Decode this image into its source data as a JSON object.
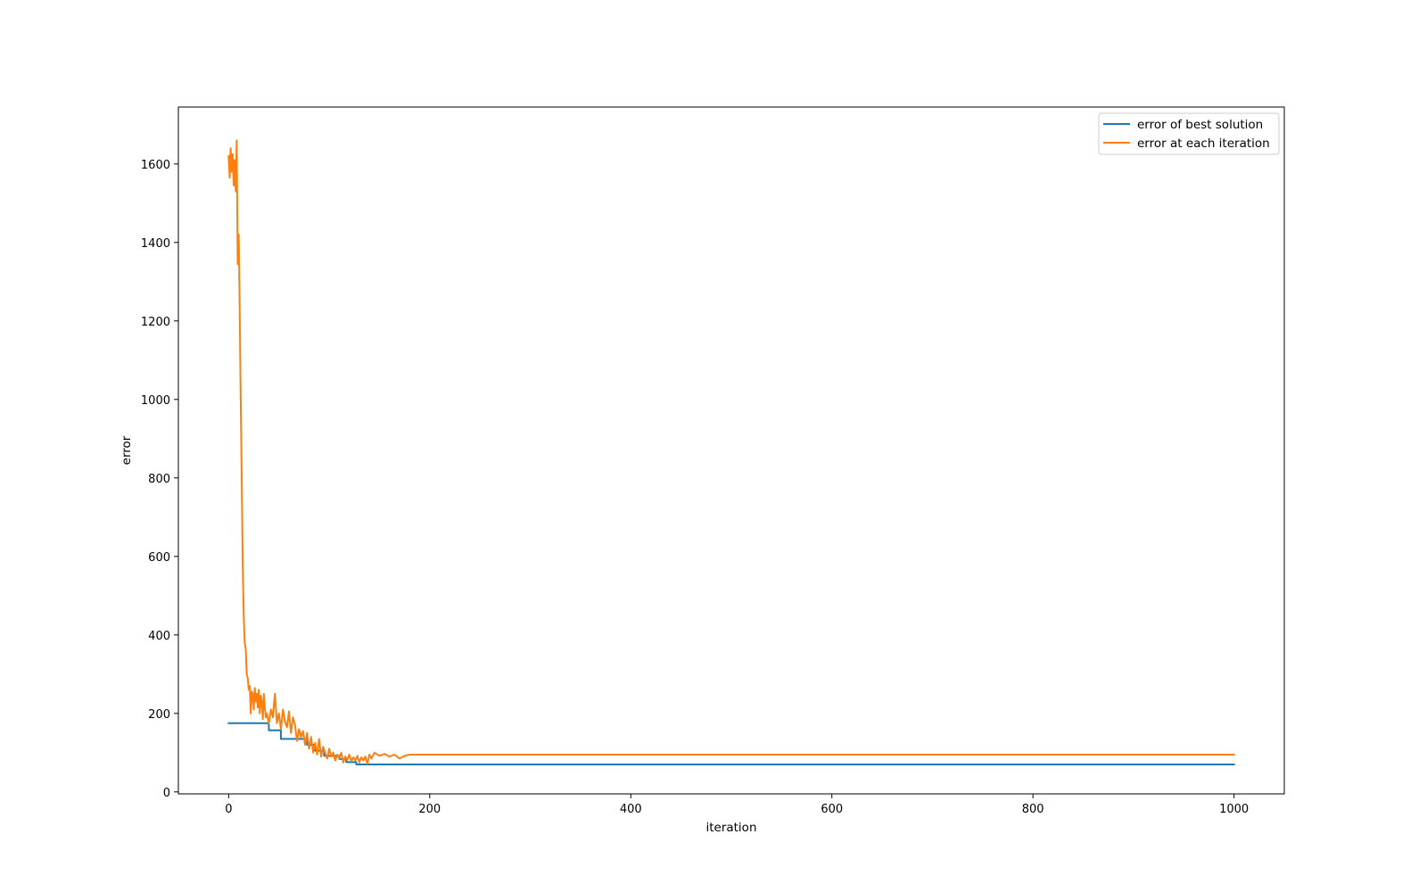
{
  "chart_data": {
    "type": "line",
    "title": "",
    "xlabel": "iteration",
    "ylabel": "error",
    "xlim": [
      -50,
      1050
    ],
    "ylim": [
      -5,
      1745
    ],
    "xticks": [
      0,
      200,
      400,
      600,
      800,
      1000
    ],
    "yticks": [
      0,
      200,
      400,
      600,
      800,
      1000,
      1200,
      1400,
      1600
    ],
    "grid": false,
    "legend_position": "top-right",
    "series": [
      {
        "name": "error of best solution",
        "color": "#1f77b4",
        "x": [
          0,
          40,
          40,
          52,
          52,
          78,
          78,
          86,
          86,
          95,
          95,
          110,
          110,
          117,
          117,
          127,
          127,
          1000
        ],
        "y": [
          175,
          175,
          157,
          157,
          135,
          135,
          120,
          120,
          105,
          105,
          92,
          92,
          84,
          84,
          76,
          76,
          70,
          70
        ]
      },
      {
        "name": "error at each iteration",
        "color": "#ff7f0e",
        "x": [
          0,
          1,
          2,
          3,
          4,
          5,
          6,
          7,
          8,
          9,
          10,
          11,
          12,
          13,
          14,
          15,
          16,
          17,
          18,
          19,
          20,
          21,
          22,
          23,
          24,
          25,
          26,
          27,
          28,
          29,
          30,
          31,
          32,
          33,
          34,
          35,
          36,
          37,
          38,
          40,
          42,
          44,
          46,
          48,
          50,
          52,
          54,
          56,
          58,
          60,
          62,
          64,
          66,
          68,
          70,
          72,
          74,
          76,
          78,
          80,
          82,
          84,
          86,
          88,
          90,
          92,
          94,
          96,
          98,
          100,
          102,
          104,
          106,
          108,
          110,
          112,
          114,
          116,
          118,
          120,
          122,
          124,
          126,
          128,
          130,
          132,
          134,
          136,
          138,
          140,
          142,
          145,
          150,
          155,
          160,
          165,
          170,
          175,
          180,
          185,
          190,
          200,
          1000
        ],
        "y": [
          1620,
          1565,
          1640,
          1580,
          1625,
          1545,
          1610,
          1530,
          1660,
          1345,
          1420,
          1230,
          1000,
          800,
          580,
          450,
          380,
          365,
          300,
          290,
          260,
          270,
          200,
          255,
          250,
          210,
          265,
          230,
          250,
          215,
          260,
          200,
          245,
          230,
          185,
          250,
          215,
          190,
          200,
          175,
          210,
          190,
          250,
          175,
          200,
          160,
          210,
          180,
          165,
          205,
          150,
          190,
          170,
          130,
          160,
          140,
          155,
          120,
          150,
          110,
          140,
          100,
          125,
          95,
          135,
          90,
          115,
          100,
          85,
          110,
          90,
          100,
          80,
          95,
          85,
          100,
          75,
          90,
          82,
          95,
          78,
          88,
          80,
          92,
          75,
          88,
          80,
          90,
          72,
          95,
          85,
          100,
          92,
          97,
          90,
          95,
          85,
          92,
          95,
          95,
          95,
          95,
          95
        ]
      }
    ]
  }
}
